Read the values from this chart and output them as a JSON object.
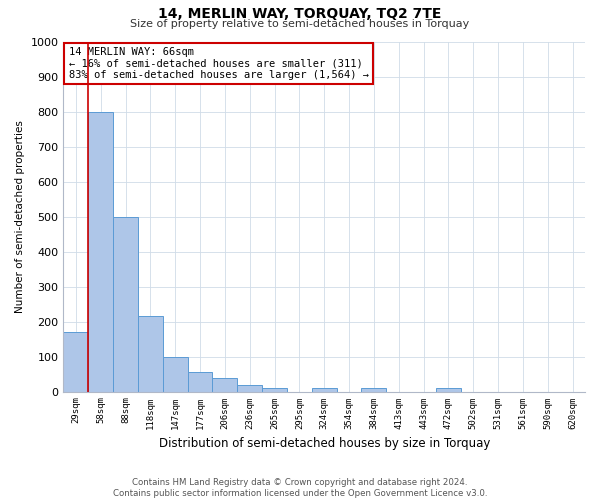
{
  "title": "14, MERLIN WAY, TORQUAY, TQ2 7TE",
  "subtitle": "Size of property relative to semi-detached houses in Torquay",
  "xlabel": "Distribution of semi-detached houses by size in Torquay",
  "ylabel": "Number of semi-detached properties",
  "categories": [
    "29sqm",
    "58sqm",
    "88sqm",
    "118sqm",
    "147sqm",
    "177sqm",
    "206sqm",
    "236sqm",
    "265sqm",
    "295sqm",
    "324sqm",
    "354sqm",
    "384sqm",
    "413sqm",
    "443sqm",
    "472sqm",
    "502sqm",
    "531sqm",
    "561sqm",
    "590sqm",
    "620sqm"
  ],
  "values": [
    170,
    800,
    500,
    215,
    100,
    57,
    40,
    18,
    10,
    0,
    10,
    0,
    10,
    0,
    0,
    10,
    0,
    0,
    0,
    0,
    0
  ],
  "bar_color": "#aec6e8",
  "bar_edge_color": "#5b9bd5",
  "property_line_x": 0.5,
  "property_line_color": "#cc0000",
  "annotation_line1": "14 MERLIN WAY: 66sqm",
  "annotation_line2": "← 16% of semi-detached houses are smaller (311)",
  "annotation_line3": "83% of semi-detached houses are larger (1,564) →",
  "annotation_box_color": "#ffffff",
  "annotation_box_edge_color": "#cc0000",
  "ylim": [
    0,
    1000
  ],
  "yticks": [
    0,
    100,
    200,
    300,
    400,
    500,
    600,
    700,
    800,
    900,
    1000
  ],
  "footer": "Contains HM Land Registry data © Crown copyright and database right 2024.\nContains public sector information licensed under the Open Government Licence v3.0.",
  "bg_color": "#ffffff",
  "grid_color": "#d0dce8"
}
